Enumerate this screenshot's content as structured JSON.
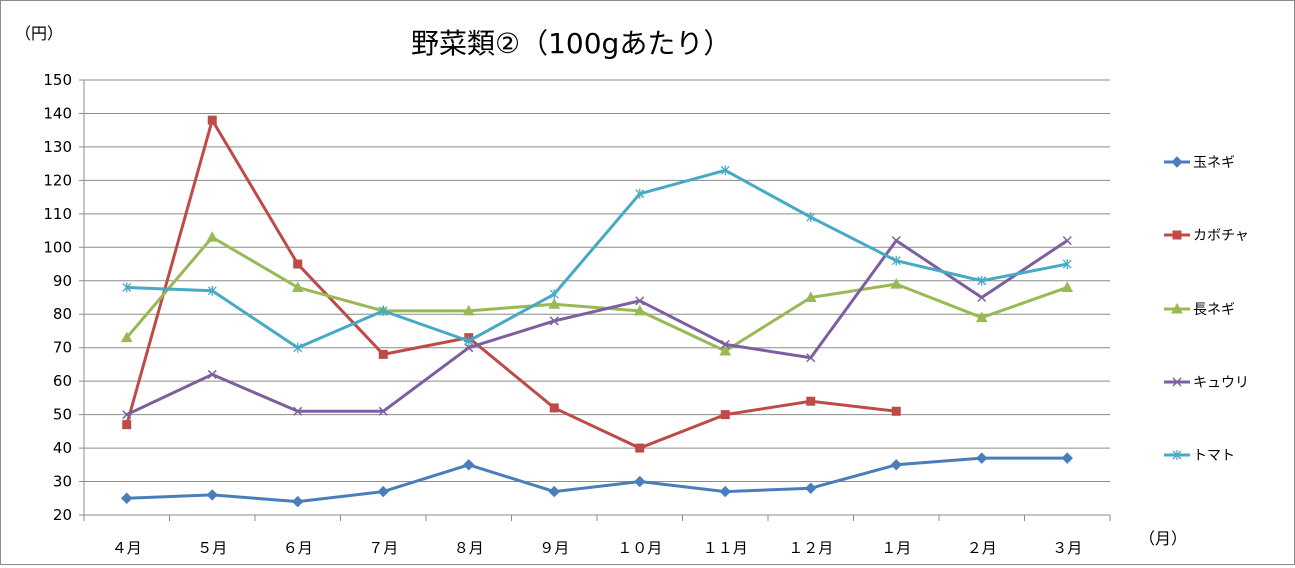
{
  "chart_data": {
    "type": "line",
    "title": "野菜類②（100gあたり）",
    "ylabel": "（円）",
    "xlabel": "（月）",
    "ylim": [
      20,
      150
    ],
    "yticks": [
      20,
      30,
      40,
      50,
      60,
      70,
      80,
      90,
      100,
      110,
      120,
      130,
      140,
      150
    ],
    "grid": true,
    "legend_position": "right",
    "categories": [
      "４月",
      "５月",
      "６月",
      "７月",
      "８月",
      "９月",
      "１０月",
      "１１月",
      "１２月",
      "１月",
      "２月",
      "３月"
    ],
    "series": [
      {
        "name": "玉ネギ",
        "color": "#4a7ebb",
        "marker": "diamond",
        "values": [
          25,
          26,
          24,
          27,
          35,
          27,
          30,
          27,
          28,
          35,
          37,
          37
        ]
      },
      {
        "name": "カボチャ",
        "color": "#be4b48",
        "marker": "square",
        "values": [
          47,
          138,
          95,
          68,
          73,
          52,
          40,
          50,
          54,
          51,
          null,
          null
        ]
      },
      {
        "name": "長ネギ",
        "color": "#98b954",
        "marker": "triangle",
        "values": [
          73,
          103,
          88,
          81,
          81,
          83,
          81,
          69,
          85,
          89,
          79,
          88
        ]
      },
      {
        "name": "キュウリ",
        "color": "#7d5fa0",
        "marker": "x",
        "values": [
          50,
          62,
          51,
          51,
          70,
          78,
          84,
          71,
          67,
          102,
          85,
          102
        ]
      },
      {
        "name": "トマト",
        "color": "#46aac5",
        "marker": "star",
        "values": [
          88,
          87,
          70,
          81,
          72,
          86,
          116,
          123,
          109,
          96,
          90,
          95
        ]
      }
    ]
  }
}
